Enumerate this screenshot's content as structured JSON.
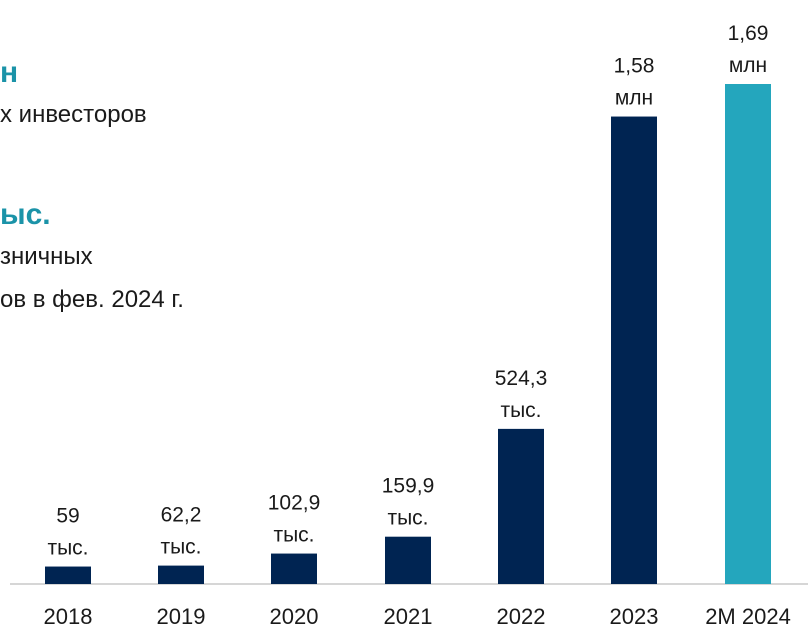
{
  "colors": {
    "accent_text": "#1b93a8",
    "bar_dark": "#002452",
    "bar_light": "#24a6bd",
    "axis": "#c8c8c8"
  },
  "highlights": [
    {
      "headline": "н",
      "lines": [
        "х инвесторов"
      ]
    },
    {
      "headline": "ыс.",
      "lines": [
        "зничных",
        "ов в фев. 2024 г."
      ]
    }
  ],
  "chart_data": {
    "type": "bar",
    "title": "",
    "xlabel": "",
    "ylabel": "",
    "categories": [
      "2018",
      "2019",
      "2020",
      "2021",
      "2022",
      "2023",
      "2М 2024"
    ],
    "values": [
      59,
      62.2,
      102.9,
      159.9,
      524.3,
      1580,
      1690
    ],
    "unit": "тыс.",
    "data_labels": [
      [
        "59",
        "тыс."
      ],
      [
        "62,2",
        "тыс."
      ],
      [
        "102,9",
        "тыс."
      ],
      [
        "159,9",
        "тыс."
      ],
      [
        "524,3",
        "тыс."
      ],
      [
        "1,58",
        "млн"
      ],
      [
        "1,69",
        "млн"
      ]
    ],
    "highlight_index": 6,
    "ylim": [
      0,
      1690
    ],
    "grid": false,
    "legend": "none"
  }
}
